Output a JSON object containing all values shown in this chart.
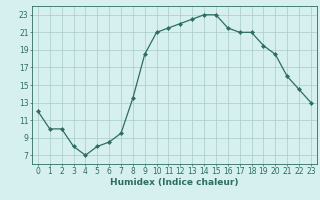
{
  "x": [
    0,
    1,
    2,
    3,
    4,
    5,
    6,
    7,
    8,
    9,
    10,
    11,
    12,
    13,
    14,
    15,
    16,
    17,
    18,
    19,
    20,
    21,
    22,
    23
  ],
  "y": [
    12,
    10,
    10,
    8,
    7,
    8,
    8.5,
    9.5,
    13.5,
    18.5,
    21,
    21.5,
    22,
    22.5,
    23,
    23,
    21.5,
    21,
    21,
    19.5,
    18.5,
    16,
    14.5,
    13
  ],
  "line_color": "#2e6e5e",
  "marker": "D",
  "marker_size": 2.0,
  "bg_color": "#d6f0ef",
  "grid_color": "#a8ccca",
  "xlabel": "Humidex (Indice chaleur)",
  "xlim": [
    -0.5,
    23.5
  ],
  "ylim": [
    6,
    24
  ],
  "yticks": [
    7,
    9,
    11,
    13,
    15,
    17,
    19,
    21,
    23
  ],
  "xticks": [
    0,
    1,
    2,
    3,
    4,
    5,
    6,
    7,
    8,
    9,
    10,
    11,
    12,
    13,
    14,
    15,
    16,
    17,
    18,
    19,
    20,
    21,
    22,
    23
  ],
  "tick_color": "#2e6e5e",
  "label_fontsize": 6.5,
  "tick_fontsize": 5.5
}
